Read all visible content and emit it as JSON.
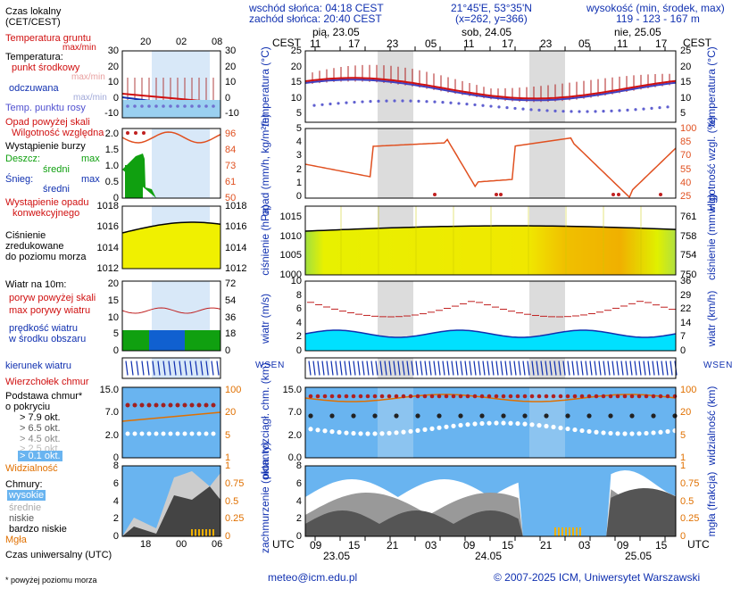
{
  "header": {
    "sunrise": "wschód słońca: 04:18 CEST",
    "sunset": "zachód słońca: 20:40 CEST",
    "coords": "21°45'E, 53°35'N",
    "grid": "(x=262, y=366)",
    "height_title": "wysokość (min, środek, max)",
    "height_values": "119 - 123 - 167 m"
  },
  "left_legend": {
    "local_time": "Czas lokalny",
    "local_time_sub": "(CET/CEST)",
    "utc_time": "Czas uniwersalny (UTC)",
    "footnote": "* powyżej poziomu morza",
    "local_ticks": [
      "20",
      "02",
      "08"
    ],
    "utc_ticks": [
      "18",
      "00",
      "06"
    ],
    "temp": {
      "ground": "Temperatura gruntu",
      "ground_sub": "max/min",
      "temp": "Temperatura:",
      "mid": "punkt środkowy",
      "maxmin": "max/min",
      "felt": "odczuwana",
      "felt_sub": "max/min",
      "dew": "Temp. punktu rosy",
      "axis": [
        "30",
        "20",
        "10",
        "0",
        "-10"
      ]
    },
    "precip": {
      "rain_over": "Opad powyżej skali",
      "humidity": "Wilgotność względna",
      "storm": "Wystąpienie burzy",
      "rain": "Deszcz:",
      "max": "max",
      "mean": "średni",
      "snow": "Śnieg:",
      "occurrence": "Wystąpienie opadu",
      "convective": "konwekcyjnego",
      "axis_left": [
        "2.0",
        "1.5",
        "1.0",
        "0.5",
        "0"
      ],
      "axis_right": [
        "96",
        "84",
        "73",
        "61",
        "50"
      ]
    },
    "pressure": {
      "label1": "Ciśnienie",
      "label2": "zredukowane",
      "label3": "do poziomu morza",
      "axis_left": [
        "1018",
        "1016",
        "1014",
        "1012"
      ],
      "axis_right": [
        "1018",
        "1016",
        "1014",
        "1012"
      ]
    },
    "wind": {
      "label": "Wiatr na 10m:",
      "gust_over": "poryw powyżej skali",
      "gust_max": "max porywy wiatru",
      "speed": "prędkość wiatru",
      "speed_sub": "w środku obszaru",
      "axis_left": [
        "20",
        "15",
        "10",
        "5",
        "0"
      ],
      "axis_right": [
        "72",
        "54",
        "36",
        "18",
        "0"
      ]
    },
    "wind_dir": "kierunek wiatru",
    "clouds": {
      "top": "Wierzchołek chmur",
      "base": "Podstawa chmur*",
      "cover": "o pokryciu",
      "o79": "> 7.9 okt.",
      "o65": "> 6.5 okt.",
      "o45": "> 4.5 okt.",
      "o25": "> 2.5 okt.",
      "o01": "> 0.1 okt.",
      "visibility": "Widzialność",
      "axis_left": [
        "15.0",
        "7.0",
        "2.0",
        "0"
      ],
      "axis_right": [
        "100",
        "20",
        "5",
        "1"
      ]
    },
    "cloudcover": {
      "label": "Chmury:",
      "high": "wysokie",
      "mid": "średnie",
      "low": "niskie",
      "vlow": "bardzo niskie",
      "fog": "Mgła",
      "axis_left": [
        "8",
        "6",
        "4",
        "2",
        "0"
      ],
      "axis_right": [
        "1",
        "0.75",
        "0.5",
        "0.25",
        "0"
      ]
    }
  },
  "main": {
    "days": [
      "pią, 23.05",
      "sob, 24.05",
      "nie, 25.05"
    ],
    "cest": "CEST",
    "utc": "UTC",
    "top_ticks": [
      "11",
      "17",
      "23",
      "05",
      "11",
      "17",
      "23",
      "05",
      "11",
      "17"
    ],
    "bottom_ticks": [
      "09",
      "15",
      "21",
      "03",
      "09",
      "15",
      "21",
      "03",
      "09",
      "15"
    ],
    "bottom_days": [
      "23.05",
      "24.05",
      "25.05"
    ],
    "temp": {
      "ylabel": "temperatura (°C)",
      "axis": [
        "25",
        "20",
        "15",
        "10",
        "5"
      ]
    },
    "precip": {
      "ylabel_left": "opad (mm/h, kg/m²/h)",
      "ylabel_right": "wilgotność wzgl. (%)",
      "axis_left": [
        "5",
        "4",
        "3",
        "2",
        "1",
        "0"
      ],
      "axis_right": [
        "100",
        "85",
        "70",
        "55",
        "40",
        "25"
      ]
    },
    "pressure": {
      "ylabel_left": "ciśnienie (hPa)",
      "ylabel_right": "ciśnienie (mm Hg)",
      "axis_left": [
        "1015",
        "1010",
        "1005",
        "1000"
      ],
      "axis_right": [
        "761",
        "758",
        "754",
        "750"
      ]
    },
    "wind": {
      "ylabel_left": "wiatr (m/s)",
      "ylabel_right": "wiatr (km/h)",
      "axis_left": [
        "10",
        "8",
        "6",
        "4",
        "2",
        "0"
      ],
      "axis_right": [
        "36",
        "29",
        "22",
        "14",
        "7",
        "0"
      ]
    },
    "dir": {
      "compass": "W S E N"
    },
    "clouds": {
      "ylabel_left": "pion. rozciągł. chm. (km)",
      "ylabel_right": "widzialność (km)",
      "axis_left": [
        "15.0",
        "7.0",
        "2.0",
        "0.0"
      ],
      "axis_right": [
        "100",
        "20",
        "5",
        "1"
      ]
    },
    "cover": {
      "ylabel_left": "zachmurzenie (oktanty)",
      "ylabel_right": "mgła (frakcja)",
      "axis_left": [
        "8",
        "6",
        "4",
        "2",
        "0"
      ],
      "axis_right": [
        "1",
        "0.75",
        "0.5",
        "0.25",
        "0"
      ]
    }
  },
  "footer": {
    "email": "meteo@icm.edu.pl",
    "copyright": "© 2007-2025 ICM, Uniwersytet Warszawski"
  },
  "colors": {
    "night": "#dcdcdc",
    "night_left": "#d8e8f8",
    "temp_red": "#d01010",
    "blue": "#1030b0",
    "orange": "#e07000",
    "pressure_yellow": "#f0f000",
    "wind_cyan": "#00e0ff",
    "cloud_bg": "#69b4f0"
  }
}
